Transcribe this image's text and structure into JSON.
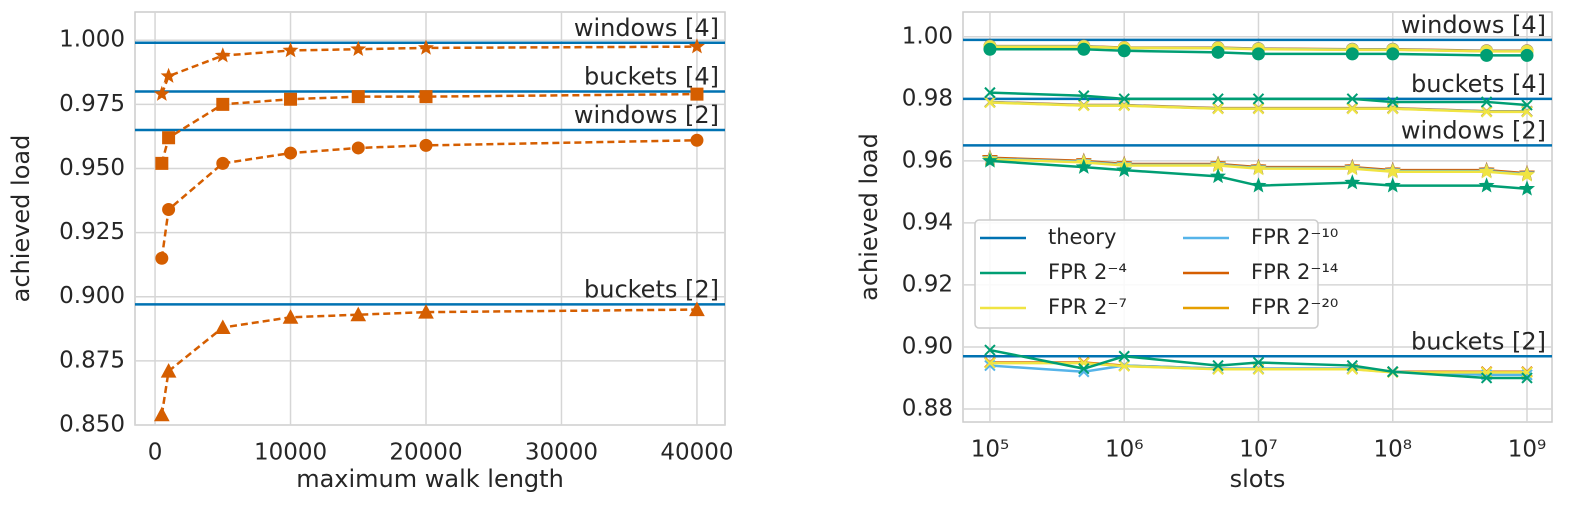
{
  "chart_data": [
    {
      "type": "line",
      "xlabel": "maximum walk length",
      "ylabel": "achieved load",
      "x": [
        500,
        1000,
        5000,
        10000,
        15000,
        20000,
        40000
      ],
      "xlim": [
        -1480,
        42070
      ],
      "xticks": [
        0,
        10000,
        20000,
        30000,
        40000
      ],
      "ylim": [
        0.85,
        1.011
      ],
      "yticks": [
        {
          "value": 0.85,
          "label": "0.850"
        },
        {
          "value": 0.875,
          "label": "0.875"
        },
        {
          "value": 0.9,
          "label": "0.900"
        },
        {
          "value": 0.925,
          "label": "0.925"
        },
        {
          "value": 0.95,
          "label": "0.950"
        },
        {
          "value": 0.975,
          "label": "0.975"
        },
        {
          "value": 1.0,
          "label": "1.000"
        }
      ],
      "grid": true,
      "linestyle": "dashed",
      "reference_lines": {
        "color": "#0072b2",
        "values": [
          0.999,
          0.98,
          0.965,
          0.897
        ],
        "labels": [
          "windows [4]",
          "buckets [4]",
          "windows [2]",
          "buckets [2]"
        ]
      },
      "series": [
        {
          "color": "#d55e00",
          "marker": "star",
          "values": [
            0.979,
            0.986,
            0.994,
            0.996,
            0.9965,
            0.997,
            0.9975
          ]
        },
        {
          "color": "#d55e00",
          "marker": "square",
          "values": [
            0.952,
            0.962,
            0.975,
            0.977,
            0.978,
            0.978,
            0.979
          ]
        },
        {
          "color": "#d55e00",
          "marker": "circle",
          "values": [
            0.915,
            0.934,
            0.952,
            0.956,
            0.958,
            0.959,
            0.961
          ]
        },
        {
          "color": "#d55e00",
          "marker": "triangle",
          "values": [
            0.854,
            0.871,
            0.888,
            0.892,
            0.893,
            0.894,
            0.895
          ]
        }
      ]
    },
    {
      "type": "line",
      "xlabel": "slots",
      "ylabel": "achieved load",
      "xscale": "log",
      "x": [
        100000,
        500000,
        1000000,
        5000000,
        10000000,
        50000000,
        100000000,
        500000000,
        1000000000
      ],
      "xlim": [
        63000,
        1535000000
      ],
      "xticks": [
        {
          "value": 100000,
          "label": "10⁵"
        },
        {
          "value": 1000000,
          "label": "10⁶"
        },
        {
          "value": 10000000,
          "label": "10⁷"
        },
        {
          "value": 100000000,
          "label": "10⁸"
        },
        {
          "value": 1000000000,
          "label": "10⁹"
        }
      ],
      "ylim": [
        0.8758,
        1.008
      ],
      "yticks": [
        0.88,
        {
          "value": 0.9,
          "label": "0.90"
        },
        0.92,
        0.94,
        0.96,
        0.98,
        {
          "value": 1.0,
          "label": "1.00"
        }
      ],
      "grid": true,
      "linestyle": "solid",
      "legend": "center-left",
      "markers": [
        "circle",
        "x",
        "star",
        "x"
      ],
      "reference_lines": {
        "name": "theory",
        "color": "#0072b2",
        "values": [
          0.999,
          0.98,
          0.965,
          0.897
        ],
        "labels": [
          "windows [4]",
          "buckets  [4]",
          "windows [2]",
          "buckets  [2]"
        ]
      },
      "series": [
        {
          "name": "FPR 2⁻⁴",
          "color": "#009e73",
          "values": [
            [
              0.996,
              0.996,
              0.9955,
              0.995,
              0.9945,
              0.9945,
              0.9945,
              0.994,
              0.994
            ],
            [
              0.982,
              0.981,
              0.98,
              0.98,
              0.98,
              0.98,
              0.979,
              0.979,
              0.978
            ],
            [
              0.96,
              0.958,
              0.957,
              0.955,
              0.952,
              0.953,
              0.952,
              0.952,
              0.951
            ],
            [
              0.899,
              0.893,
              0.897,
              0.894,
              0.895,
              0.894,
              0.892,
              0.89,
              0.89
            ]
          ]
        },
        {
          "name": "FPR 2⁻⁷",
          "color": "#f0e442",
          "values": [
            [
              0.9968,
              0.9968,
              0.9964,
              0.9963,
              0.996,
              0.9958,
              0.9958,
              0.9953,
              0.9953
            ],
            [
              0.9788,
              0.9778,
              0.9778,
              0.9768,
              0.9768,
              0.9768,
              0.9768,
              0.9758,
              0.9758
            ],
            [
              0.9605,
              0.9595,
              0.9585,
              0.9585,
              0.9575,
              0.9575,
              0.9565,
              0.9565,
              0.9555
            ],
            [
              0.8948,
              0.8948,
              0.8938,
              0.8928,
              0.8928,
              0.8928,
              0.8918,
              0.8918,
              0.8918
            ]
          ]
        },
        {
          "name": "FPR 2⁻¹⁰",
          "color": "#56b4e9",
          "values": [
            [
              0.9969,
              0.9969,
              0.9964,
              0.9964,
              0.9961,
              0.9959,
              0.9959,
              0.9954,
              0.9954
            ],
            [
              0.9789,
              0.9779,
              0.9779,
              0.9769,
              0.9769,
              0.9769,
              0.9769,
              0.9759,
              0.9759
            ],
            [
              0.9607,
              0.9597,
              0.9587,
              0.9587,
              0.9577,
              0.9577,
              0.9567,
              0.9567,
              0.9557
            ],
            [
              0.894,
              0.892,
              0.894,
              0.893,
              0.893,
              0.893,
              0.892,
              0.891,
              0.891
            ]
          ]
        },
        {
          "name": "FPR 2⁻¹⁴",
          "color": "#d55e00",
          "values": [
            [
              0.997,
              0.997,
              0.9965,
              0.9965,
              0.9962,
              0.996,
              0.996,
              0.9955,
              0.9955
            ],
            [
              0.979,
              0.978,
              0.978,
              0.977,
              0.977,
              0.977,
              0.977,
              0.976,
              0.976
            ],
            [
              0.961,
              0.96,
              0.959,
              0.959,
              0.958,
              0.958,
              0.957,
              0.957,
              0.956
            ],
            [
              0.895,
              0.895,
              0.894,
              0.893,
              0.893,
              0.893,
              0.892,
              0.892,
              0.892
            ]
          ]
        },
        {
          "name": "FPR 2⁻²⁰",
          "color": "#e69f00",
          "values": [
            [
              0.9969,
              0.9969,
              0.9964,
              0.9964,
              0.9961,
              0.9959,
              0.9959,
              0.9954,
              0.9954
            ],
            [
              0.9789,
              0.9779,
              0.9779,
              0.9769,
              0.9769,
              0.9769,
              0.9769,
              0.9759,
              0.9759
            ],
            [
              0.9608,
              0.9598,
              0.9588,
              0.9588,
              0.9578,
              0.9578,
              0.9568,
              0.9568,
              0.9558
            ],
            [
              0.8949,
              0.8949,
              0.8939,
              0.8929,
              0.8929,
              0.8929,
              0.8919,
              0.8919,
              0.8919
            ]
          ]
        }
      ]
    }
  ]
}
